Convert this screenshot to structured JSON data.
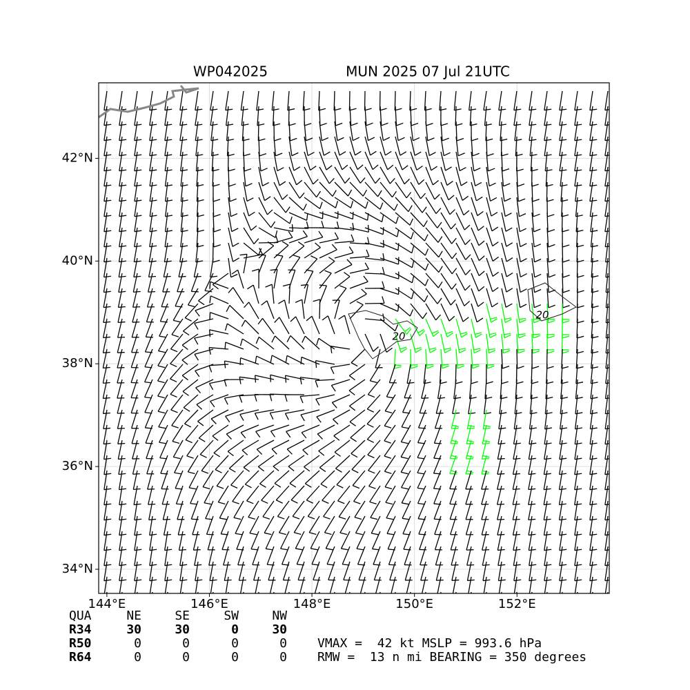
{
  "header": {
    "storm_id": "WP042025",
    "valid": "MUN 2025 07 Jul 21UTC"
  },
  "map": {
    "xlim": [
      143.84,
      153.8
    ],
    "ylim": [
      33.53,
      43.47
    ],
    "xticks": [
      {
        "value": 144,
        "label": "144°E"
      },
      {
        "value": 146,
        "label": "146°E"
      },
      {
        "value": 148,
        "label": "148°E"
      },
      {
        "value": 150,
        "label": "150°E"
      },
      {
        "value": 152,
        "label": "152°E"
      }
    ],
    "yticks": [
      {
        "value": 34,
        "label": "34°N"
      },
      {
        "value": 36,
        "label": "36°N"
      },
      {
        "value": 38,
        "label": "38°N"
      },
      {
        "value": 40,
        "label": "40°N"
      },
      {
        "value": 42,
        "label": "42°N"
      }
    ],
    "contour_labels": [
      20,
      20
    ]
  },
  "table": {
    "header": [
      "QUA",
      "NE",
      "SE",
      "SW",
      "NW"
    ],
    "rows": [
      [
        "R34",
        30,
        30,
        0,
        30
      ],
      [
        "R50",
        0,
        0,
        0,
        0
      ],
      [
        "R64",
        0,
        0,
        0,
        0
      ]
    ]
  },
  "info": [
    "VMAX =  42 kt MSLP = 993.6 hPa",
    "RMW =  13 n mi BEARING = 350 degrees"
  ]
}
